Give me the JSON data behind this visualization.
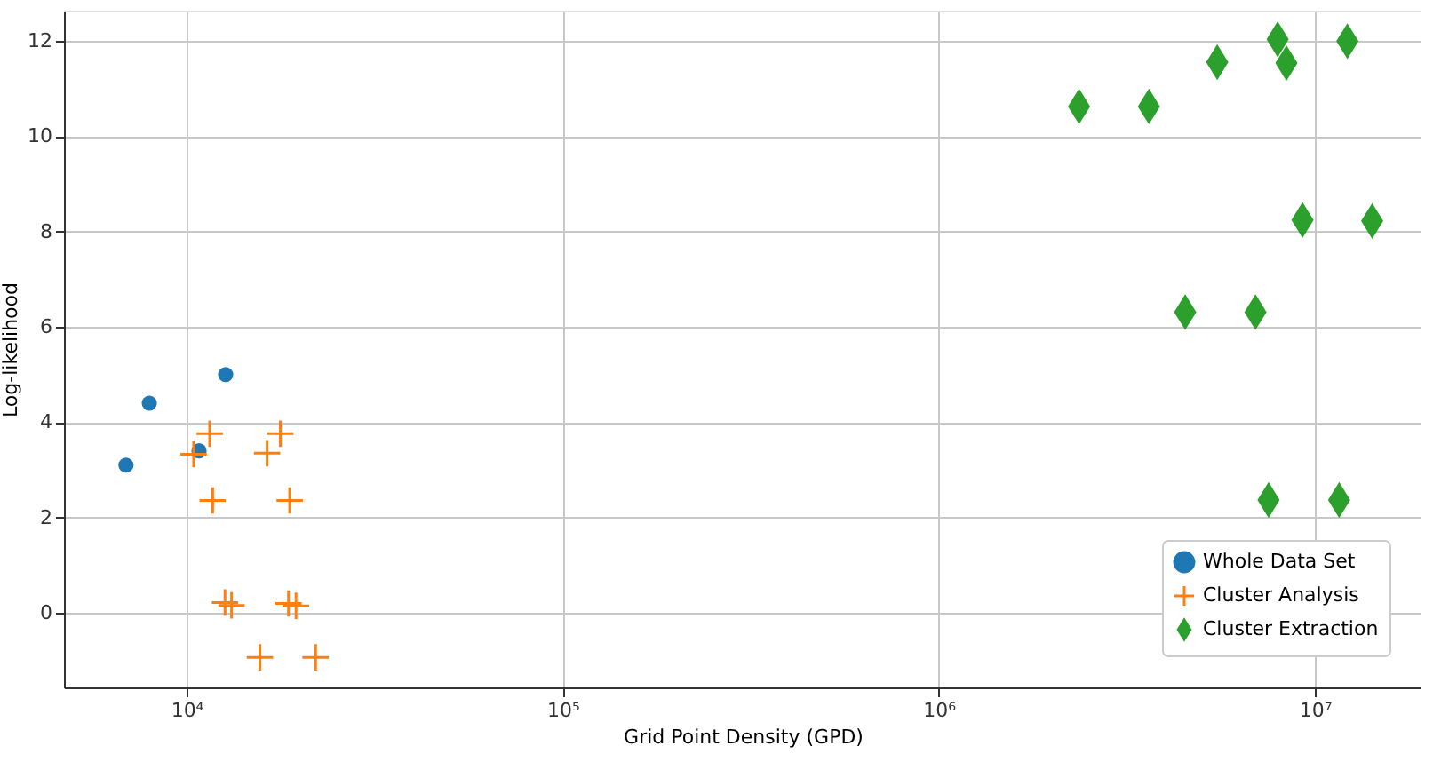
{
  "chart_data": {
    "type": "scatter",
    "xlabel": "Grid Point Density (GPD)",
    "ylabel": "Log-likelihood",
    "log": "x",
    "grid": true,
    "legend": "bottom right",
    "xlim": [
      4720,
      19200000
    ],
    "ylim": [
      -1.56,
      12.63
    ],
    "xticks": [
      {
        "value": 10000,
        "label": "10⁴"
      },
      {
        "value": 100000,
        "label": "10⁵"
      },
      {
        "value": 1000000,
        "label": "10⁶"
      },
      {
        "value": 10000000,
        "label": "10⁷"
      }
    ],
    "yticks": [
      0,
      2,
      4,
      6,
      8,
      10,
      12
    ],
    "series": [
      {
        "name": "Whole Data Set",
        "color": "#1f77b4",
        "marker": "circle",
        "x": [
          6900,
          7960,
          10790,
          12700
        ],
        "values": [
          3.1,
          4.4,
          3.4,
          5.0
        ]
      },
      {
        "name": "Cluster Analysis",
        "color": "#ff7f0e",
        "marker": "cross",
        "x": [
          11520,
          10440,
          11730,
          17750,
          16370,
          18800,
          12650,
          13170,
          18660,
          19540,
          15670,
          22030
        ],
        "values": [
          3.76,
          3.33,
          2.36,
          3.76,
          3.35,
          2.36,
          0.22,
          0.16,
          0.2,
          0.15,
          -0.93,
          -0.93
        ]
      },
      {
        "name": "Cluster Extraction",
        "color": "#2ca02c",
        "marker": "diamond",
        "x": [
          2360000,
          3620000,
          5500000,
          7960000,
          8400000,
          12200000,
          9270000,
          14200000,
          4520000,
          6950000,
          7530000,
          11600000
        ],
        "values": [
          10.62,
          10.62,
          11.55,
          12.03,
          11.53,
          11.99,
          8.24,
          8.22,
          6.31,
          6.31,
          2.37,
          2.37
        ]
      }
    ]
  }
}
